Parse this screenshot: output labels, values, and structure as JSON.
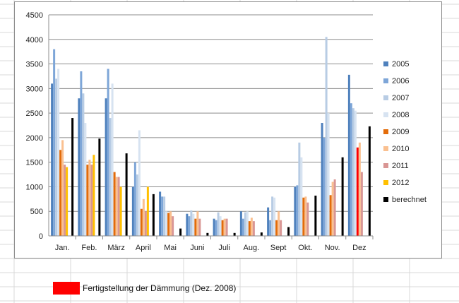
{
  "chart_data": {
    "type": "bar",
    "title": "",
    "xlabel": "",
    "ylabel": "",
    "ylim": [
      0,
      4500
    ],
    "yticks": [
      0,
      500,
      1000,
      1500,
      2000,
      2500,
      3000,
      3500,
      4000,
      4500
    ],
    "grid": true,
    "legend": "right",
    "categories": [
      "Jan.",
      "Feb.",
      "März",
      "April",
      "Mai",
      "Juni",
      "Juli",
      "Aug.",
      "Sept",
      "Okt.",
      "Nov.",
      "Dez"
    ],
    "series": [
      {
        "name": "2005",
        "color": "#4f81bd",
        "values": [
          3100,
          2800,
          2800,
          1000,
          900,
          450,
          350,
          500,
          580,
          1000,
          2300,
          3280
        ]
      },
      {
        "name": "2006",
        "color": "#7ea6d8",
        "values": [
          3800,
          3350,
          3400,
          1500,
          800,
          400,
          320,
          350,
          320,
          1030,
          2000,
          2700
        ]
      },
      {
        "name": "2007",
        "color": "#b8cce4",
        "values": [
          3200,
          2900,
          2400,
          1250,
          800,
          520,
          480,
          480,
          800,
          1900,
          4050,
          2600
        ]
      },
      {
        "name": "2008",
        "color": "#d7e3f1",
        "values": [
          3400,
          2300,
          3100,
          2150,
          500,
          450,
          400,
          500,
          780,
          1600,
          2500,
          2550
        ]
      },
      {
        "name": "2009",
        "color": "#e36c0a",
        "values": [
          1750,
          1450,
          1300,
          550,
          470,
          350,
          320,
          300,
          320,
          780,
          830,
          1800
        ]
      },
      {
        "name": "2010",
        "color": "#fac090",
        "values": [
          1950,
          1550,
          1200,
          750,
          500,
          500,
          350,
          370,
          500,
          800,
          1100,
          1900
        ]
      },
      {
        "name": "2011",
        "color": "#d99694",
        "values": [
          1450,
          1450,
          1200,
          500,
          400,
          350,
          350,
          300,
          320,
          680,
          1150,
          1300
        ]
      },
      {
        "name": "2012",
        "color": "#ffc000",
        "values": [
          1400,
          1650,
          1000,
          1000,
          null,
          null,
          null,
          null,
          null,
          null,
          null,
          null
        ]
      },
      {
        "name": "berechnet",
        "color": "#000000",
        "values": [
          2400,
          1980,
          1680,
          850,
          150,
          60,
          60,
          70,
          180,
          820,
          1600,
          2230
        ]
      }
    ],
    "highlight": {
      "series": "2009",
      "category": "Dez",
      "color": "#ff0000"
    }
  },
  "note": {
    "swatch_color": "#ff0000",
    "text": "Fertigstellung der Dämmung (Dez. 2008)"
  }
}
